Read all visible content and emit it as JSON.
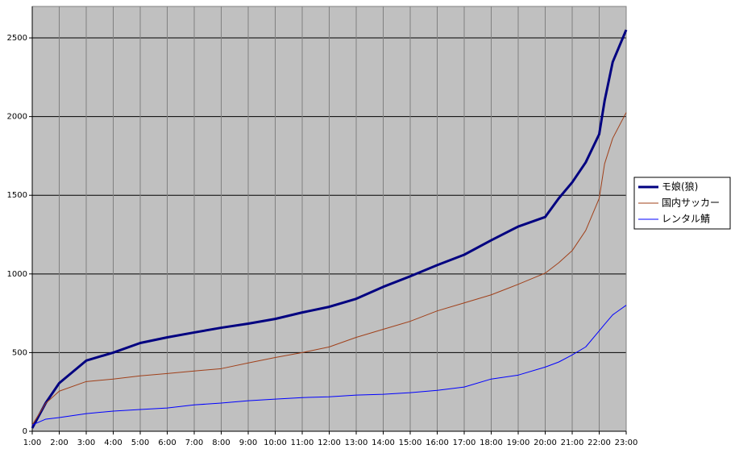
{
  "chart_data": {
    "type": "line",
    "x": [
      1,
      1.5,
      2,
      3,
      4,
      5,
      6,
      7,
      8,
      9,
      10,
      11,
      12,
      13,
      14,
      15,
      16,
      17,
      18,
      19,
      20,
      20.5,
      21,
      21.5,
      22,
      22.2,
      22.5,
      23
    ],
    "series": [
      {
        "name": "モ娘(狼)",
        "color": "#000080",
        "line_width": 3,
        "values": [
          20,
          180,
          306,
          449,
          500,
          561,
          597,
          628,
          658,
          684,
          714,
          755,
          791,
          842,
          918,
          985,
          1056,
          1122,
          1214,
          1301,
          1362,
          1480,
          1582,
          1709,
          1888,
          2100,
          2347,
          2551
        ]
      },
      {
        "name": "国内サッカー",
        "color": "#a0401a",
        "line_width": 1,
        "values": [
          40,
          178,
          255,
          316,
          332,
          352,
          367,
          383,
          398,
          434,
          469,
          500,
          536,
          597,
          648,
          699,
          765,
          816,
          867,
          934,
          1005,
          1071,
          1148,
          1276,
          1480,
          1700,
          1862,
          2026
        ]
      },
      {
        "name": "レンタル鯖",
        "color": "#0000ff",
        "line_width": 1,
        "values": [
          40,
          77,
          87,
          112,
          128,
          138,
          148,
          168,
          179,
          194,
          204,
          214,
          219,
          230,
          235,
          245,
          260,
          281,
          332,
          357,
          408,
          440,
          485,
          536,
          638,
          680,
          740,
          801
        ]
      }
    ],
    "xlim": [
      1,
      23
    ],
    "xticks": [
      {
        "value": 1,
        "label": "1:00"
      },
      {
        "value": 2,
        "label": "2:00"
      },
      {
        "value": 3,
        "label": "3:00"
      },
      {
        "value": 4,
        "label": "4:00"
      },
      {
        "value": 5,
        "label": "5:00"
      },
      {
        "value": 6,
        "label": "6:00"
      },
      {
        "value": 7,
        "label": "7:00"
      },
      {
        "value": 8,
        "label": "8:00"
      },
      {
        "value": 9,
        "label": "9:00"
      },
      {
        "value": 10,
        "label": "10:00"
      },
      {
        "value": 11,
        "label": "11:00"
      },
      {
        "value": 12,
        "label": "12:00"
      },
      {
        "value": 13,
        "label": "13:00"
      },
      {
        "value": 14,
        "label": "14:00"
      },
      {
        "value": 15,
        "label": "15:00"
      },
      {
        "value": 16,
        "label": "16:00"
      },
      {
        "value": 17,
        "label": "17:00"
      },
      {
        "value": 18,
        "label": "18:00"
      },
      {
        "value": 19,
        "label": "19:00"
      },
      {
        "value": 20,
        "label": "20:00"
      },
      {
        "value": 21,
        "label": "21:00"
      },
      {
        "value": 22,
        "label": "22:00"
      },
      {
        "value": 23,
        "label": "23:00"
      }
    ],
    "ylim": [
      0,
      2700
    ],
    "yticks": [
      0,
      500,
      1000,
      1500,
      2000,
      2500
    ],
    "grid": true,
    "legend": "right"
  }
}
